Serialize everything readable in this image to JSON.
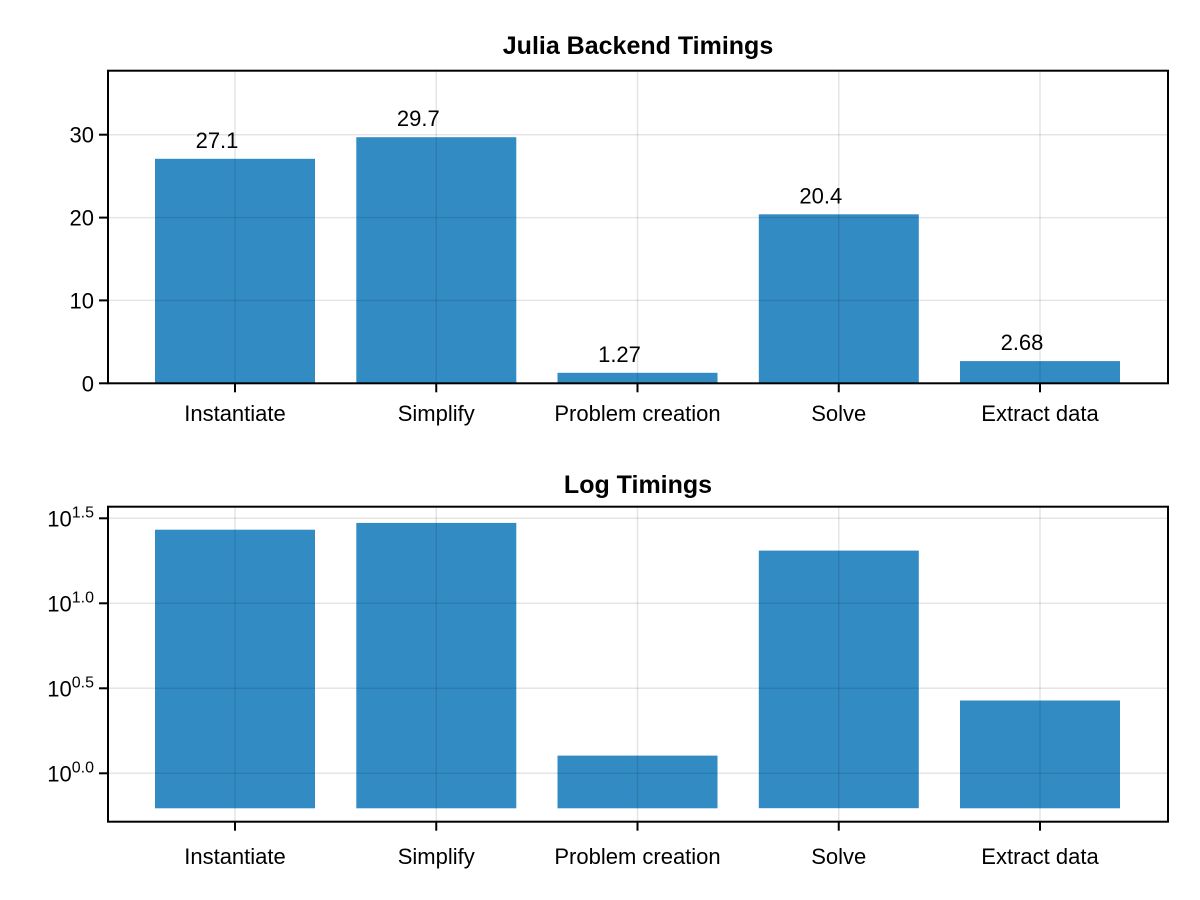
{
  "figure": {
    "background": "#ffffff",
    "bar_color": "#338BC4",
    "grid_color": "rgba(0,0,0,0.10)",
    "frame_color": "#000000",
    "text_color": "#000000"
  },
  "chart_data": [
    {
      "type": "bar",
      "title": "Julia Backend Timings",
      "categories": [
        "Instantiate",
        "Simplify",
        "Problem creation",
        "Solve",
        "Extract data"
      ],
      "values": [
        27.1,
        29.7,
        1.27,
        20.4,
        2.68
      ],
      "bar_labels": [
        "27.1",
        "29.7",
        "1.27",
        "20.4",
        "2.68"
      ],
      "xlabel": "",
      "ylabel": "",
      "yscale": "linear",
      "ylim": [
        0,
        37.73
      ],
      "yticks": [
        0,
        10,
        20,
        30
      ],
      "ytick_labels": [
        "0",
        "10",
        "20",
        "30"
      ],
      "grid": true,
      "legend_position": "none"
    },
    {
      "type": "bar",
      "title": "Log Timings",
      "categories": [
        "Instantiate",
        "Simplify",
        "Problem creation",
        "Solve",
        "Extract data"
      ],
      "values": [
        27.1,
        29.7,
        1.27,
        20.4,
        2.68
      ],
      "xlabel": "",
      "ylabel": "",
      "yscale": "log10",
      "ylim_exponents": [
        -0.285,
        1.568
      ],
      "bar_base_exponent": -0.206,
      "ytick_exponents": [
        0.0,
        0.5,
        1.0,
        1.5
      ],
      "ytick_labels": [
        {
          "base": "10",
          "exp": "0.0"
        },
        {
          "base": "10",
          "exp": "0.5"
        },
        {
          "base": "10",
          "exp": "1.0"
        },
        {
          "base": "10",
          "exp": "1.5"
        }
      ],
      "grid": true,
      "legend_position": "none"
    }
  ]
}
